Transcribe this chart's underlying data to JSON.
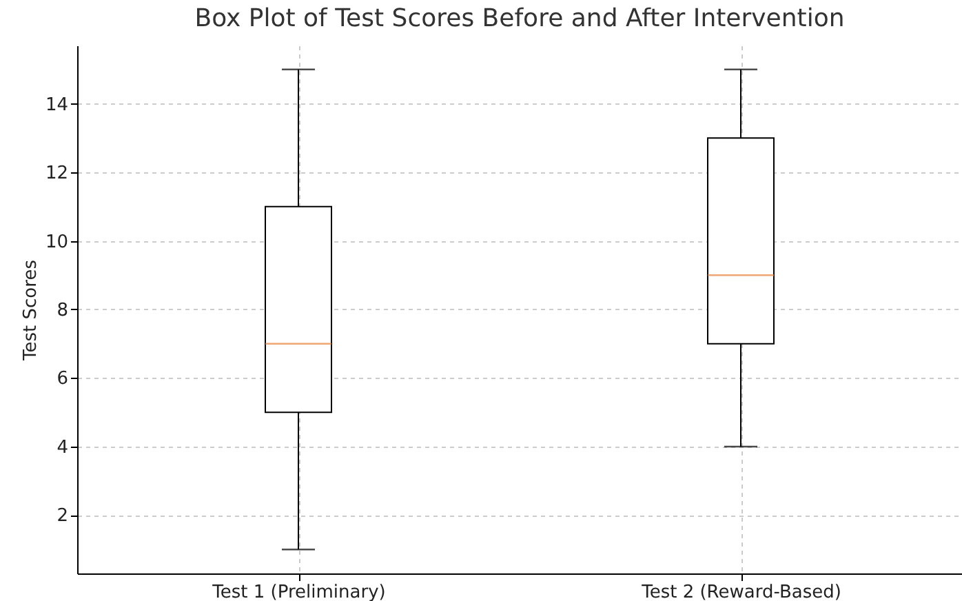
{
  "chart_data": {
    "type": "box",
    "title": "Box Plot of Test Scores Before and After Intervention",
    "ylabel": "Test Scores",
    "categories": [
      "Test 1 (Preliminary)",
      "Test 2 (Reward-Based)"
    ],
    "series": [
      {
        "color": "#000000",
        "boxes": [
          {
            "low": 1,
            "q1": 5,
            "median": 7,
            "q3": 11,
            "high": 15
          },
          {
            "low": 4,
            "q1": 7,
            "median": 9,
            "q3": 13,
            "high": 15
          }
        ]
      }
    ],
    "ylim": [
      0.3,
      15.7
    ],
    "yticks": [
      2,
      4,
      6,
      8,
      10,
      12,
      14
    ],
    "grid": true
  }
}
